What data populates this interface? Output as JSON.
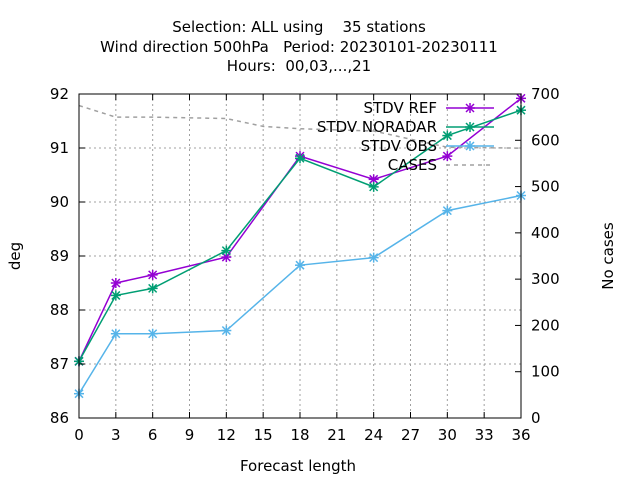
{
  "chart_data": {
    "type": "line",
    "title": [
      "Selection: ALL using    35 stations",
      "Wind direction 500hPa   Period: 20230101-20230111",
      "Hours:  00,03,...,21"
    ],
    "xlabel": "Forecast length",
    "ylabel": "deg",
    "y2label": "No cases",
    "xlim": [
      0,
      36
    ],
    "ylim": [
      86,
      92
    ],
    "y2lim": [
      0,
      700
    ],
    "xticks": [
      "0",
      "3",
      "6",
      "9",
      "12",
      "15",
      "18",
      "21",
      "24",
      "27",
      "30",
      "33",
      "36"
    ],
    "yticks": [
      "86",
      "87",
      "88",
      "89",
      "90",
      "91",
      "92"
    ],
    "y2ticks": [
      "0",
      "100",
      "200",
      "300",
      "400",
      "500",
      "600",
      "700"
    ],
    "grid": true,
    "legend_position": "top-right",
    "series": [
      {
        "name": "STDV REF",
        "color": "#9400d3",
        "marker": "x-star",
        "axis": "y",
        "x": [
          0,
          3,
          6,
          12,
          18,
          24,
          30,
          36
        ],
        "values": [
          87.05,
          88.5,
          88.65,
          88.98,
          90.85,
          90.42,
          90.85,
          91.92
        ]
      },
      {
        "name": "STDV NORADAR",
        "color": "#009e73",
        "marker": "x-star",
        "axis": "y",
        "x": [
          0,
          3,
          6,
          12,
          18,
          24,
          30,
          36
        ],
        "values": [
          87.05,
          88.27,
          88.4,
          89.1,
          90.81,
          90.28,
          91.23,
          91.7
        ]
      },
      {
        "name": "STDV OBS",
        "color": "#56b4e9",
        "marker": "x-star",
        "axis": "y",
        "x": [
          0,
          3,
          6,
          12,
          18,
          24,
          30,
          36
        ],
        "values": [
          86.45,
          87.56,
          87.56,
          87.62,
          88.83,
          88.97,
          89.84,
          90.12
        ]
      },
      {
        "name": "CASES",
        "color": "#a0a0a0",
        "dashed": true,
        "axis": "y2",
        "x": [
          0,
          3,
          6,
          12,
          15,
          18,
          24,
          30,
          36
        ],
        "values": [
          675,
          650,
          650,
          647,
          630,
          625,
          620,
          585,
          583
        ]
      }
    ]
  }
}
